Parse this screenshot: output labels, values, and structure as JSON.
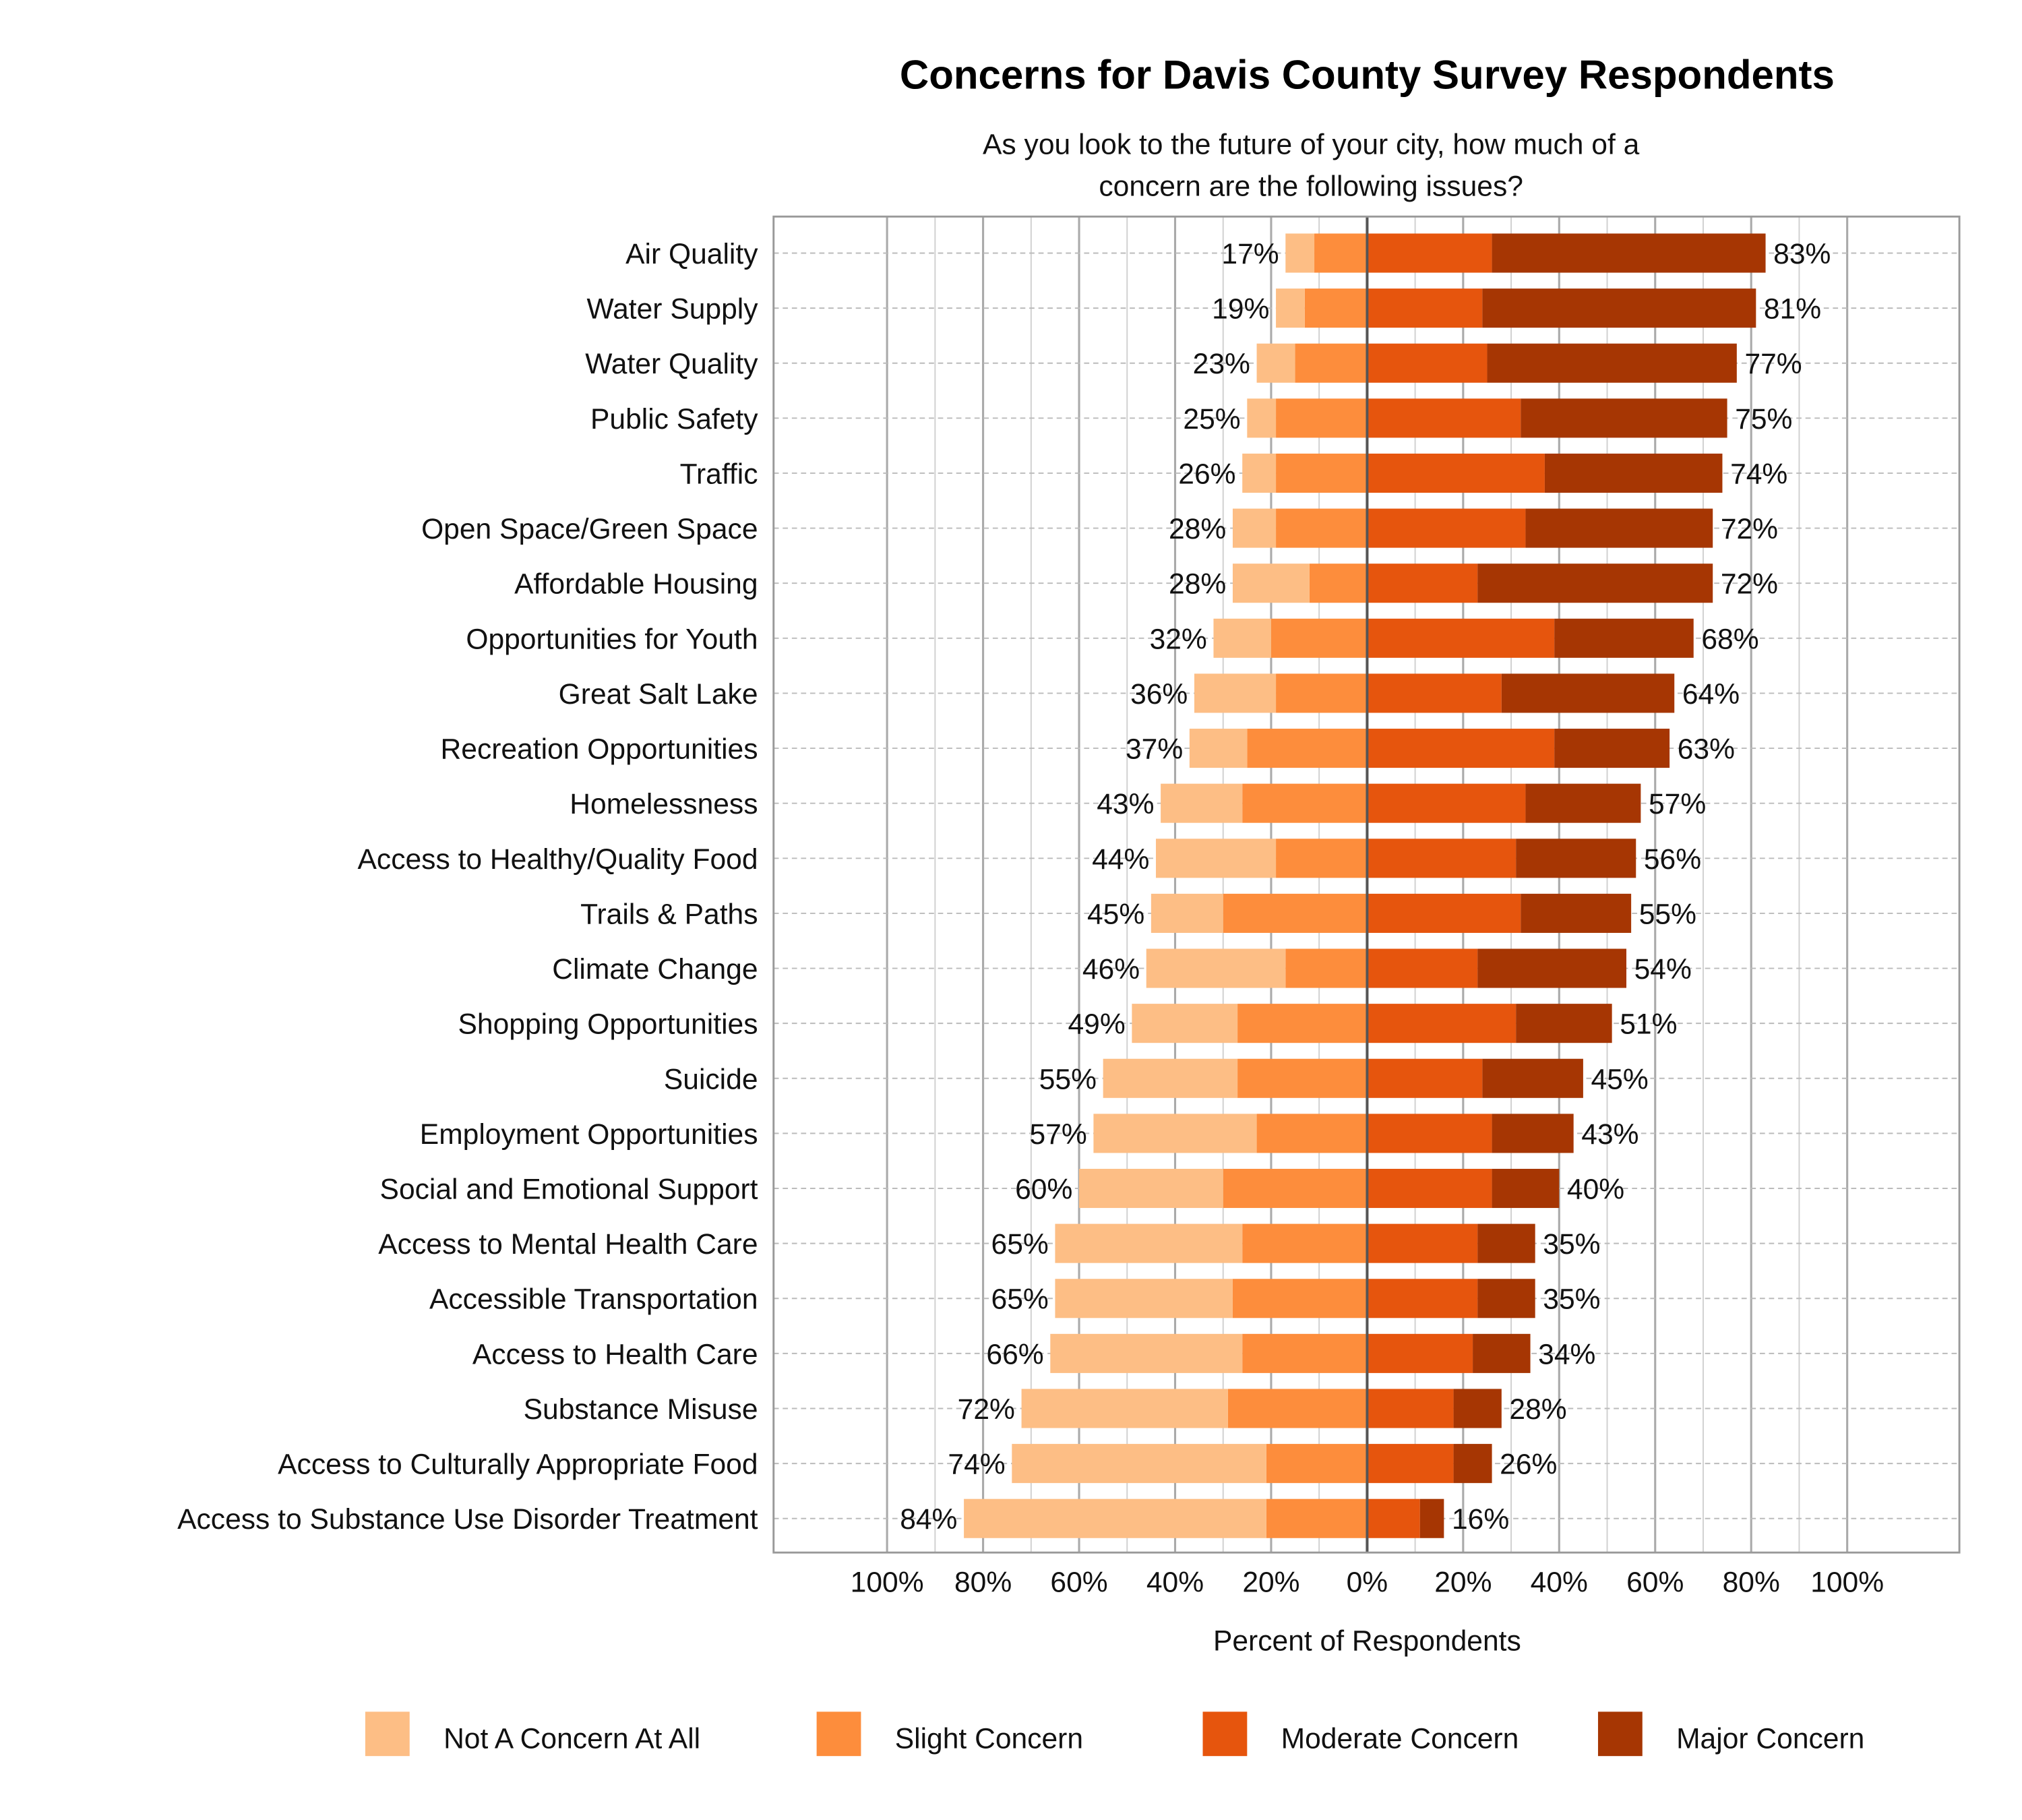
{
  "chart_data": {
    "type": "bar",
    "orientation": "horizontal",
    "stacking": "diverging",
    "title": "Concerns for Davis County Survey Respondents",
    "subtitle": [
      "As you look to the future of your city, how much of a",
      "concern are the following issues?"
    ],
    "xlabel": "Percent of Respondents",
    "ylabel": "",
    "xlim": [
      -100,
      100
    ],
    "x_tick_labels": [
      "100%",
      "80%",
      "60%",
      "40%",
      "20%",
      "0%",
      "20%",
      "40%",
      "60%",
      "80%",
      "100%"
    ],
    "grid": true,
    "legend_position": "bottom",
    "categories": [
      "Air Quality",
      "Water Supply",
      "Water Quality",
      "Public Safety",
      "Traffic",
      "Open Space/Green Space",
      "Affordable Housing",
      "Opportunities for Youth",
      "Great Salt Lake",
      "Recreation Opportunities",
      "Homelessness",
      "Access to Healthy/Quality Food",
      "Trails & Paths",
      "Climate Change",
      "Shopping Opportunities",
      "Suicide",
      "Employment Opportunities",
      "Social and Emotional Support",
      "Access to Mental Health Care",
      "Accessible Transportation",
      "Access to Health Care",
      "Substance Misuse",
      "Access to Culturally Appropriate Food",
      "Access to Substance Use Disorder Treatment"
    ],
    "series": [
      {
        "name": "Not A Concern At All",
        "side": "left",
        "color": "#fdbe85",
        "values": [
          6,
          6,
          8,
          6,
          7,
          9,
          16,
          12,
          17,
          12,
          17,
          25,
          15,
          29,
          22,
          28,
          34,
          30,
          39,
          37,
          40,
          43,
          53,
          63
        ]
      },
      {
        "name": "Slight Concern",
        "side": "left",
        "color": "#fd8d3c",
        "values": [
          11,
          13,
          15,
          19,
          19,
          19,
          12,
          20,
          19,
          25,
          26,
          19,
          30,
          17,
          27,
          27,
          23,
          30,
          26,
          28,
          26,
          29,
          21,
          21
        ]
      },
      {
        "name": "Moderate Concern",
        "side": "right",
        "color": "#e6550d",
        "values": [
          26,
          24,
          25,
          32,
          37,
          33,
          23,
          39,
          28,
          39,
          33,
          31,
          32,
          23,
          31,
          24,
          26,
          26,
          23,
          23,
          22,
          18,
          18,
          11
        ]
      },
      {
        "name": "Major Concern",
        "side": "right",
        "color": "#a63603",
        "values": [
          57,
          57,
          52,
          43,
          37,
          39,
          49,
          29,
          36,
          24,
          24,
          25,
          23,
          31,
          20,
          21,
          17,
          14,
          12,
          12,
          12,
          10,
          8,
          5
        ]
      }
    ],
    "left_totals": [
      "17%",
      "19%",
      "23%",
      "25%",
      "26%",
      "28%",
      "28%",
      "32%",
      "36%",
      "37%",
      "43%",
      "44%",
      "45%",
      "46%",
      "49%",
      "55%",
      "57%",
      "60%",
      "65%",
      "65%",
      "66%",
      "72%",
      "74%",
      "84%"
    ],
    "right_totals": [
      "83%",
      "81%",
      "77%",
      "75%",
      "74%",
      "72%",
      "72%",
      "68%",
      "64%",
      "63%",
      "57%",
      "56%",
      "55%",
      "54%",
      "51%",
      "45%",
      "43%",
      "40%",
      "35%",
      "35%",
      "34%",
      "28%",
      "26%",
      "16%"
    ]
  }
}
